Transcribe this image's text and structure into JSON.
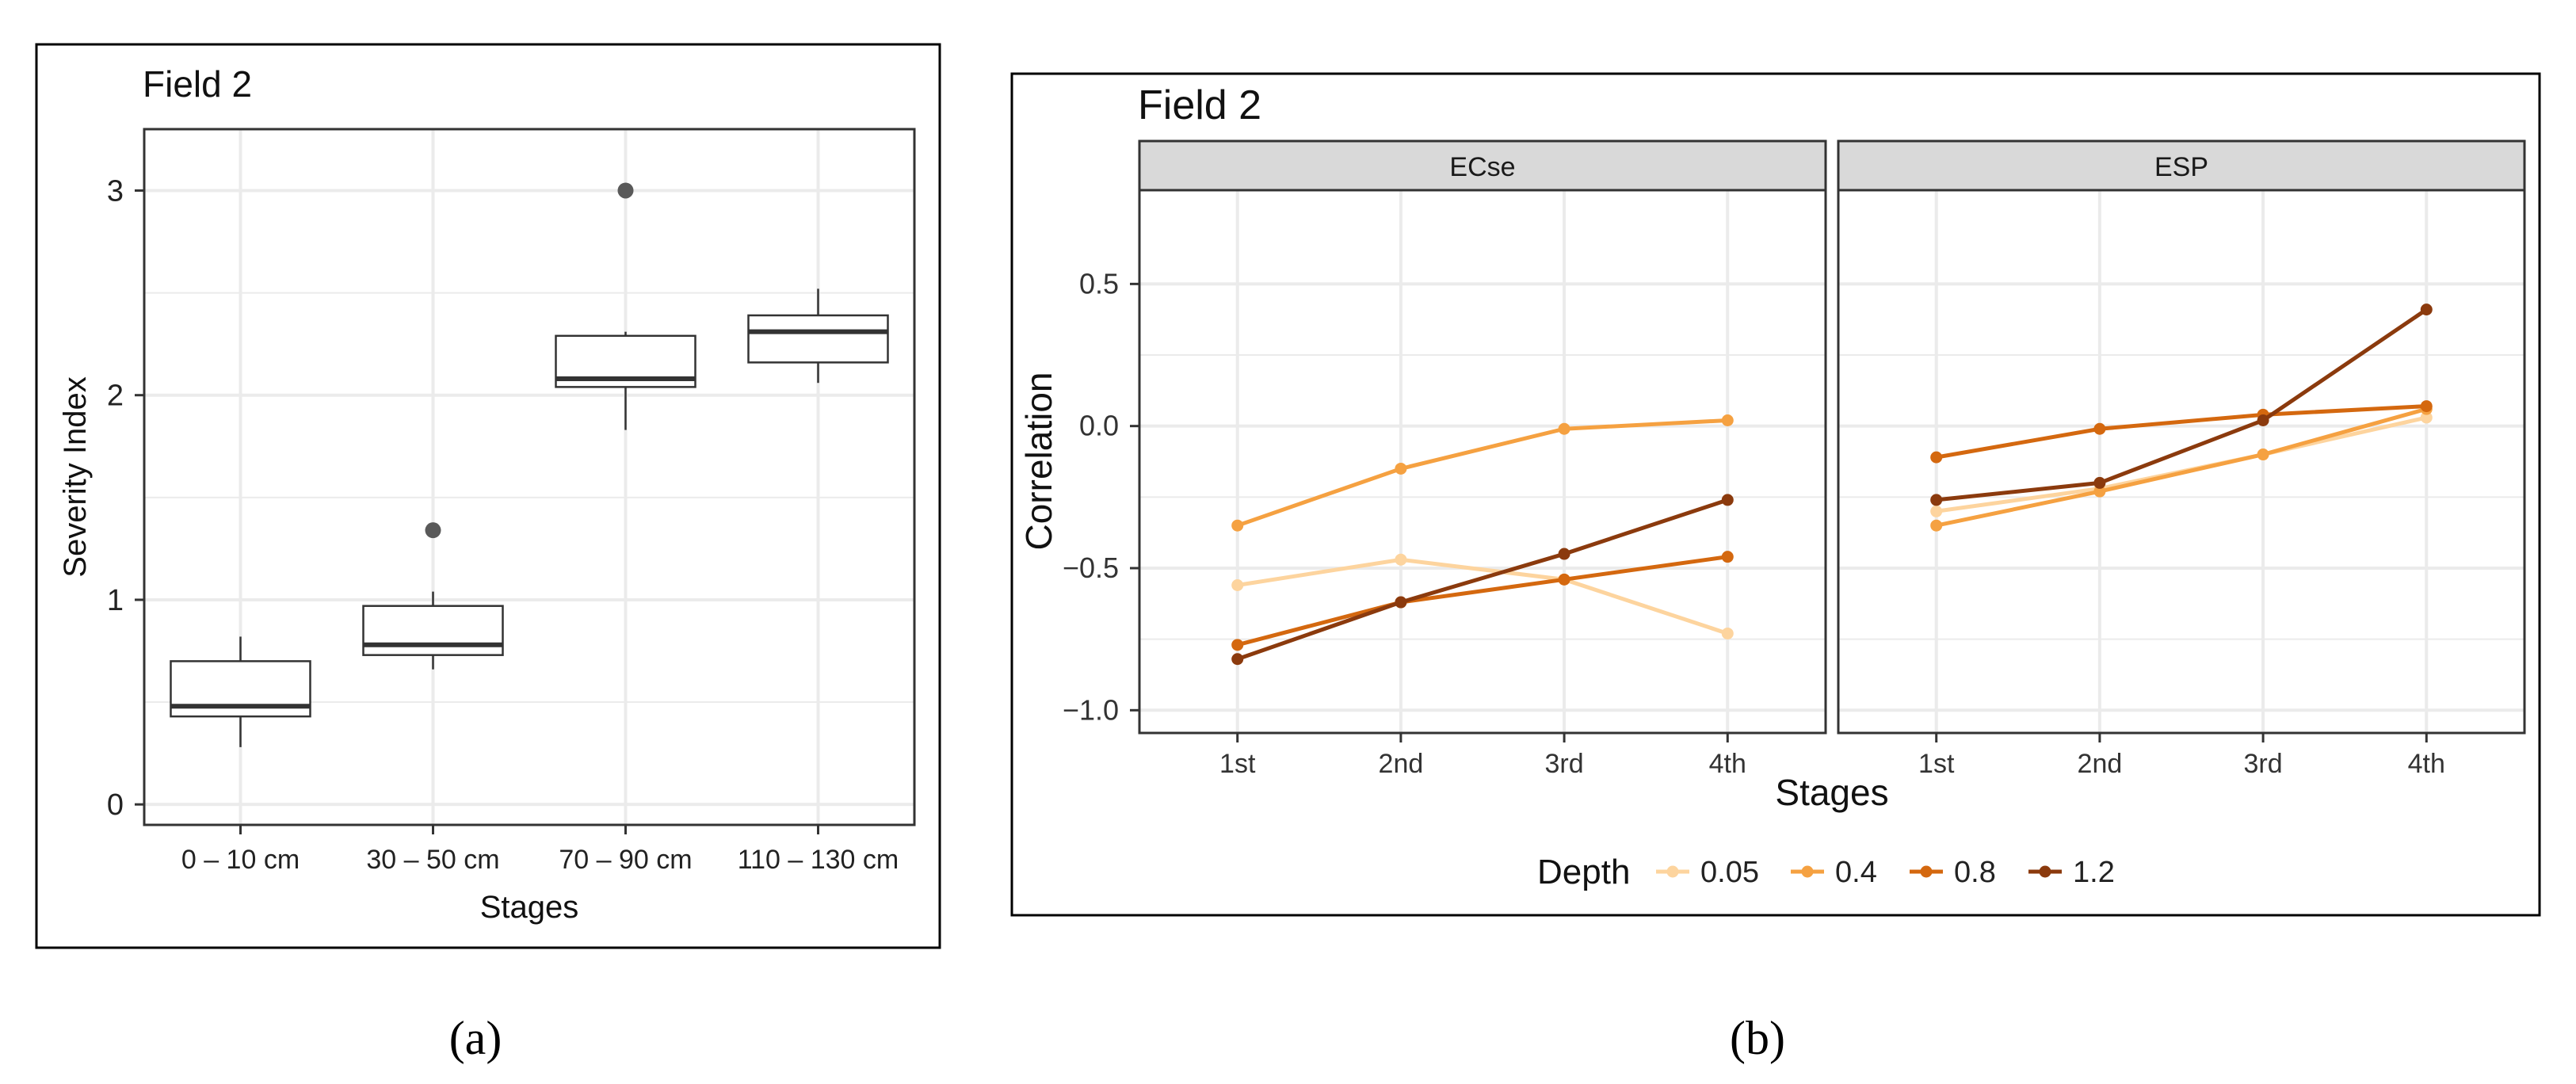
{
  "panel_a_caption": "(a)",
  "panel_b_caption": "(b)",
  "chart_data": [
    {
      "type": "boxplot",
      "title": "Field 2",
      "xlabel": "Stages",
      "ylabel": "Severity Index",
      "categories": [
        "0 – 10 cm",
        "30 – 50 cm",
        "70 – 90 cm",
        "110 – 130 cm"
      ],
      "ylim": [
        -0.1,
        3.3
      ],
      "yticks": [
        0,
        1,
        2,
        3
      ],
      "grid": true,
      "boxes": [
        {
          "min": 0.28,
          "q1": 0.43,
          "median": 0.48,
          "q3": 0.7,
          "max": 0.82,
          "outliers": []
        },
        {
          "min": 0.66,
          "q1": 0.73,
          "median": 0.78,
          "q3": 0.97,
          "max": 1.04,
          "outliers": [
            1.34
          ]
        },
        {
          "min": 1.83,
          "q1": 2.04,
          "median": 2.08,
          "q3": 2.29,
          "max": 2.31,
          "outliers": [
            3.0
          ]
        },
        {
          "min": 2.06,
          "q1": 2.16,
          "median": 2.31,
          "q3": 2.39,
          "max": 2.52,
          "outliers": []
        }
      ]
    },
    {
      "type": "line",
      "title": "Field 2",
      "xlabel": "Stages",
      "ylabel": "Correlation",
      "categories": [
        "1st",
        "2nd",
        "3rd",
        "4th"
      ],
      "ylim": [
        -1.08,
        0.83
      ],
      "yticks": [
        0.5,
        0.0,
        -0.5,
        -1.0
      ],
      "ytick_labels": [
        "0.5",
        "0.0",
        "−0.5",
        "−1.0"
      ],
      "grid": true,
      "legend": {
        "title": "Depth",
        "position": "bottom"
      },
      "facets": [
        {
          "label": "ECse",
          "series": [
            {
              "name": "0.05",
              "color": "#fdd49e",
              "values": [
                -0.56,
                -0.47,
                -0.54,
                -0.73
              ]
            },
            {
              "name": "0.4",
              "color": "#f5a141",
              "values": [
                -0.35,
                -0.15,
                -0.01,
                0.02
              ]
            },
            {
              "name": "0.8",
              "color": "#d4680f",
              "values": [
                -0.77,
                -0.62,
                -0.54,
                -0.46
              ]
            },
            {
              "name": "1.2",
              "color": "#8b3a0d",
              "values": [
                -0.82,
                -0.62,
                -0.45,
                -0.26
              ]
            }
          ]
        },
        {
          "label": "ESP",
          "series": [
            {
              "name": "0.05",
              "color": "#fdd49e",
              "values": [
                -0.3,
                -0.22,
                -0.1,
                0.03
              ]
            },
            {
              "name": "0.4",
              "color": "#f5a141",
              "values": [
                -0.35,
                -0.23,
                -0.1,
                0.06
              ]
            },
            {
              "name": "0.8",
              "color": "#d4680f",
              "values": [
                -0.11,
                -0.01,
                0.04,
                0.07
              ]
            },
            {
              "name": "1.2",
              "color": "#8b3a0d",
              "values": [
                -0.26,
                -0.2,
                0.02,
                0.41
              ]
            }
          ]
        }
      ]
    }
  ]
}
